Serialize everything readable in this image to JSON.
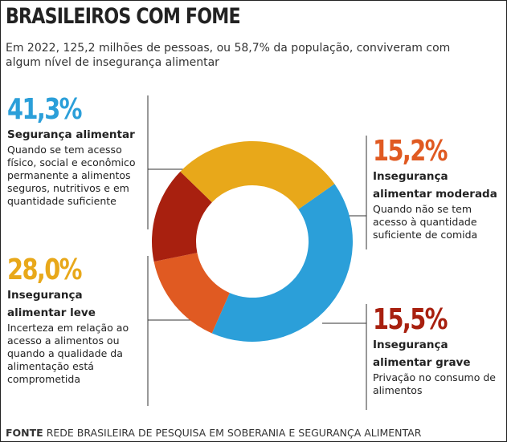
{
  "chart_data": {
    "type": "donut",
    "title": "BRASILEIROS COM FOME",
    "subtitle": "Em 2022, 125,2 milhões de pessoas, ou 58,7% da população, conviveram com algum nível de insegurança alimentar",
    "categories": [
      "Segurança alimentar",
      "Insegurança alimentar moderada",
      "Insegurança alimentar grave",
      "Insegurança alimentar leve"
    ],
    "values": [
      41.3,
      15.2,
      15.5,
      28.0
    ],
    "value_labels": [
      "41,3%",
      "15,2%",
      "15,5%",
      "28,0%"
    ],
    "colors": [
      "#2b9fd9",
      "#e05a22",
      "#a8200f",
      "#e8a81a"
    ],
    "descriptions": [
      "Quando se tem acesso físico, social e econômico permanente a alimentos seguros, nutritivos e em quantidade suficiente",
      "Quando não se tem acesso à quantidade suficiente de comida",
      "Privação no consumo de alimentos",
      "Incerteza em relação ao acesso a alimentos ou quando a qualidade da alimentação está comprometida"
    ],
    "source_label": "FONTE",
    "source": "REDE BRASILEIRA DE PESQUISA EM SOBERANIA E SEGURANÇA ALIMENTAR"
  }
}
